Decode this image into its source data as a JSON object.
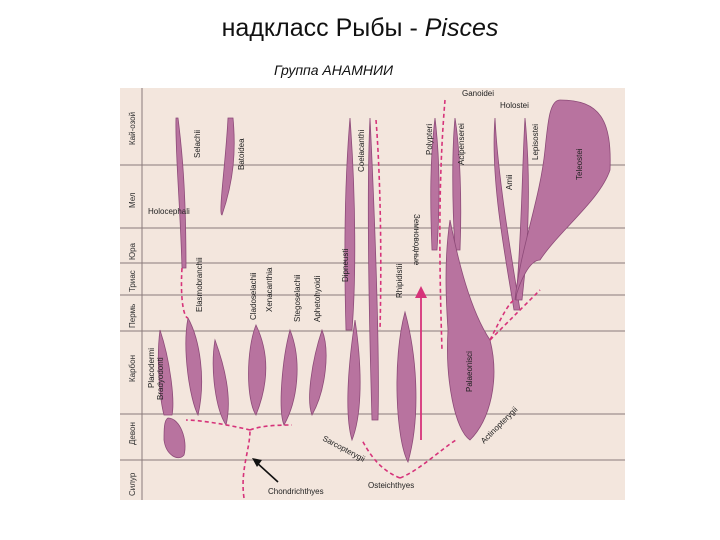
{
  "title": {
    "main": "надкласс Рыбы",
    "separator": " - ",
    "latin": "Pisces"
  },
  "subtitle": "Группа АНАМНИИ",
  "colors": {
    "background": "#f3e6dd",
    "branch": "#b8739f",
    "branch_stroke": "#8d4a78",
    "dashed": "#d6337a",
    "grid": "#8a7a7a"
  },
  "periods": [
    "Кай-озой",
    "Мел",
    "Юра",
    "Триас",
    "Пермь",
    "Карбон",
    "Девон",
    "Силур"
  ],
  "taxa": {
    "ganoidei": "Ganoidei",
    "holostei_top": "Holostei",
    "selachii": "Selachii",
    "batoidea": "Batoidea",
    "coelacanthi": "Coelacanthi",
    "polypteri": "Polypteri",
    "acipenserei": "Acipenserei",
    "amii": "Amii",
    "lepisostei": "Lepisostei",
    "teleostei": "Teleostei",
    "holocephali": "Holocephali",
    "elasmobranchii": "Elasmobranchii",
    "cladoselachii": "Cladoselachii",
    "xenacanthia": "Xenacanthia",
    "stegoselachii": "Stegoselachii",
    "aphetohyoidi": "Aphetohyoidi",
    "dipneusti": "Dipneusti",
    "amphibians": "Земноводные",
    "rhipidistii": "Rhipidistii",
    "palaeonisci": "Palaeonisci",
    "placodermi": "Placodermi",
    "bradyodonti": "Bradyodonti",
    "sarcopterygii": "Sarcopterygii",
    "actinopterygii": "Actinopterygii",
    "chondrichthyes": "Chondrichthyes",
    "osteichthyes": "Osteichthyes"
  }
}
